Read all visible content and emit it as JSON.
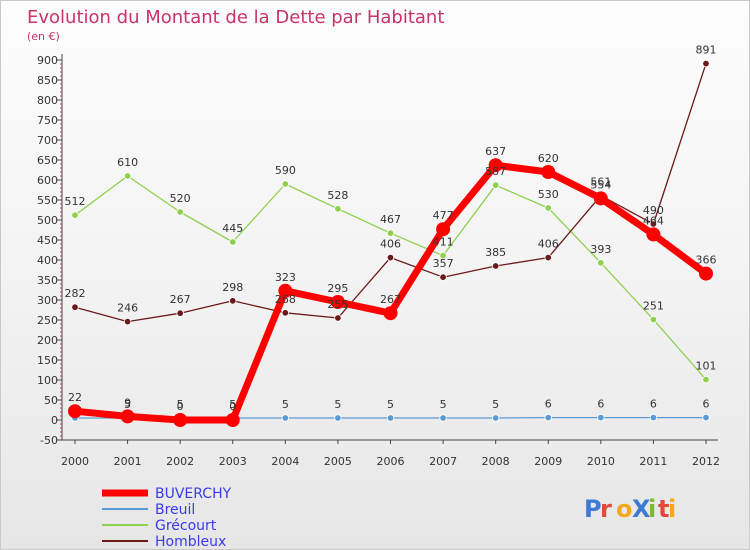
{
  "chart_data": {
    "type": "line",
    "title": "Evolution du Montant de la Dette par Habitant",
    "unit": "(en €)",
    "x": [
      "2000",
      "2001",
      "2002",
      "2003",
      "2004",
      "2005",
      "2006",
      "2007",
      "2008",
      "2009",
      "2010",
      "2011",
      "2012"
    ],
    "ylim": [
      -50,
      900
    ],
    "yticks": [
      -50,
      0,
      50,
      100,
      150,
      200,
      250,
      300,
      350,
      400,
      450,
      500,
      550,
      600,
      650,
      700,
      750,
      800,
      850,
      900
    ],
    "grid": false,
    "legend": "bottom-left",
    "series": [
      {
        "name": "Breuil",
        "color": "#5b9bd5",
        "values": [
          5,
          5,
          5,
          5,
          5,
          5,
          5,
          5,
          5,
          6,
          6,
          6,
          6
        ],
        "labels": [
          "",
          "5",
          "5",
          "5",
          "5",
          "5",
          "5",
          "5",
          "5",
          "6",
          "6",
          "6",
          "6"
        ]
      },
      {
        "name": "Grécourt",
        "color": "#8fd14f",
        "values": [
          512,
          610,
          520,
          445,
          590,
          528,
          467,
          411,
          587,
          530,
          393,
          251,
          101
        ]
      },
      {
        "name": "Hombleux",
        "color": "#6b1a1a",
        "values": [
          282,
          246,
          267,
          298,
          268,
          255,
          406,
          357,
          385,
          406,
          561,
          490,
          891
        ]
      },
      {
        "name": "BUVERCHY",
        "color": "#ff0000",
        "values": [
          22,
          9,
          0,
          0,
          323,
          295,
          267,
          477,
          637,
          620,
          554,
          464,
          366
        ],
        "labels": [
          "22",
          "9",
          "0",
          "0",
          "323",
          "295",
          "267",
          "477",
          "637",
          "620",
          "554",
          "464",
          "366"
        ]
      }
    ]
  },
  "legend_items": [
    "BUVERCHY",
    "Breuil",
    "Grécourt",
    "Hombleux"
  ],
  "logo": {
    "text": "ProXiti"
  }
}
